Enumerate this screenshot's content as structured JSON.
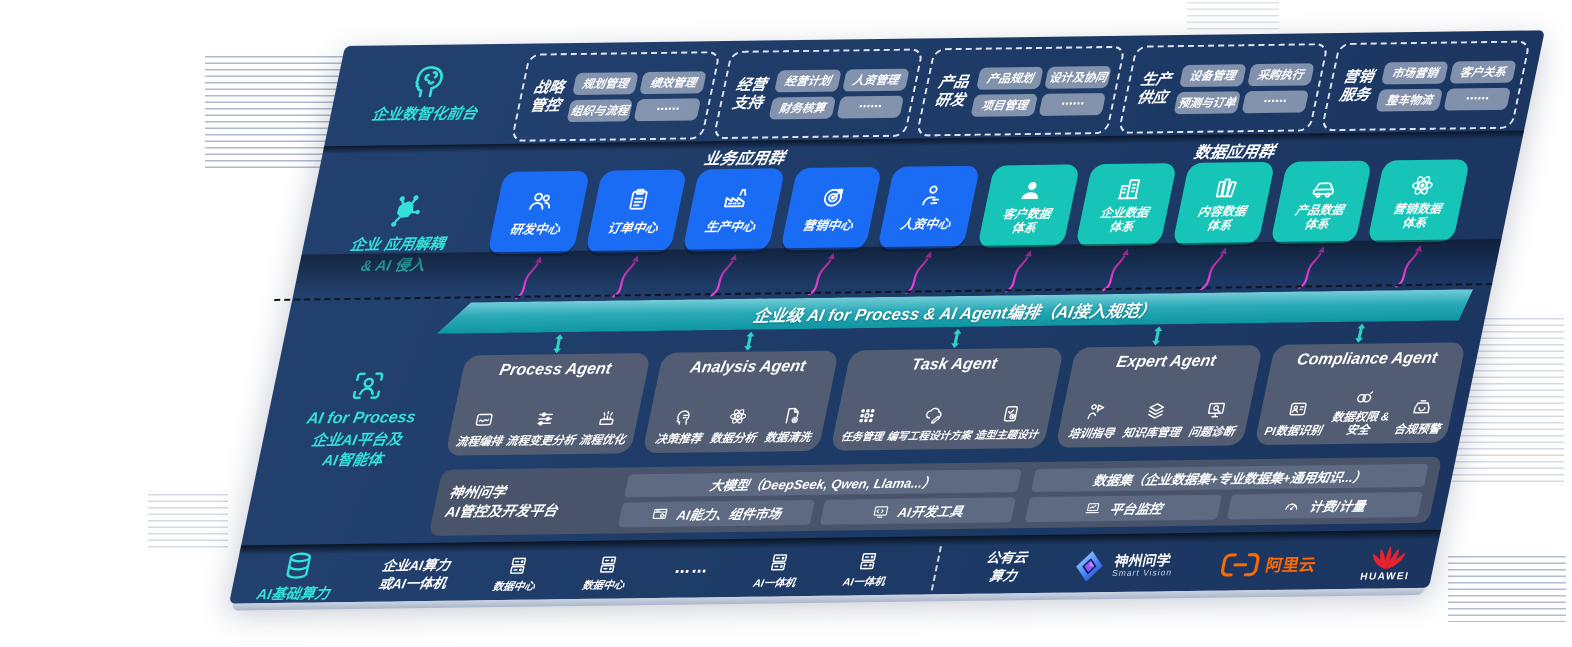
{
  "colors": {
    "panel_navy": "#1d3a66",
    "blue_tile": "#1b6cf4",
    "teal_tile": "#17c5b8",
    "banner_teal": "#1aa9b4",
    "magenta_arrow": "#ee3fd8",
    "teal_accent_text": "#35e0d8",
    "aliyun_orange": "#ff6a00",
    "huawei_red": "#e6232e"
  },
  "front_office": {
    "icon": "head-brain-icon",
    "label": "企业数智化前台",
    "groups": [
      {
        "name": "战略管控",
        "chips": [
          "规划管理",
          "绩效管理",
          "组织与流程",
          "⋯⋯"
        ]
      },
      {
        "name": "经营支持",
        "chips": [
          "经营计划",
          "人资管理",
          "财务核算",
          "⋯⋯"
        ]
      },
      {
        "name": "产品研发",
        "chips": [
          "产品规划",
          "设计及协同",
          "项目管理",
          "⋯⋯"
        ]
      },
      {
        "name": "生产供应",
        "chips": [
          "设备管理",
          "采购执行",
          "预测与订单",
          "⋯⋯"
        ]
      },
      {
        "name": "营销服务",
        "chips": [
          "市场营销",
          "客户关系",
          "整车物流",
          "⋯⋯"
        ]
      }
    ]
  },
  "apps": {
    "icon": "molecule-icon",
    "label_line1": "企业 应用解耦",
    "label_line2": "& AI 侵入",
    "business": {
      "title": "业务应用群",
      "tiles": [
        {
          "icon": "team-icon",
          "label": "研发中心"
        },
        {
          "icon": "clipboard-icon",
          "label": "订单中心"
        },
        {
          "icon": "factory-icon",
          "label": "生产中心"
        },
        {
          "icon": "target-icon",
          "label": "营销中心"
        },
        {
          "icon": "hr-icon",
          "label": "人资中心"
        }
      ]
    },
    "data": {
      "title": "数据应用群",
      "tiles": [
        {
          "icon": "user-icon",
          "label": "客户数据体系"
        },
        {
          "icon": "building-icon",
          "label": "企业数据体系"
        },
        {
          "icon": "books-icon",
          "label": "内容数据体系"
        },
        {
          "icon": "car-icon",
          "label": "产品数据体系"
        },
        {
          "icon": "atom-icon",
          "label": "营销数据体系"
        }
      ]
    }
  },
  "banner": {
    "text": "企业级 AI for Process & AI Agent编排（AI接入规范）"
  },
  "ai_platform_label": {
    "icon": "person-scan-icon",
    "line1": "AI for Process",
    "line2": "企业AI平台及",
    "line3": "AI智能体"
  },
  "agents": [
    {
      "title": "Process Agent",
      "items": [
        {
          "icon": "flow-icon",
          "label": "流程编排"
        },
        {
          "icon": "sliders-icon",
          "label": "流程变更分析"
        },
        {
          "icon": "optimize-icon",
          "label": "流程优化"
        }
      ]
    },
    {
      "title": "Analysis Agent",
      "items": [
        {
          "icon": "head-chat-icon",
          "label": "决策推荐"
        },
        {
          "icon": "atom-icon",
          "label": "数据分析"
        },
        {
          "icon": "doc-gear-icon",
          "label": "数据清洗"
        }
      ]
    },
    {
      "title": "Task Agent",
      "items": [
        {
          "icon": "grid-icon",
          "label": "任务管理"
        },
        {
          "icon": "cloud-pen-icon",
          "label": "编写工程设计方案"
        },
        {
          "icon": "card-check-icon",
          "label": "造型主题设计"
        }
      ]
    },
    {
      "title": "Expert Agent",
      "items": [
        {
          "icon": "trainer-icon",
          "label": "培训指导"
        },
        {
          "icon": "layers-icon",
          "label": "知识库管理"
        },
        {
          "icon": "diagnose-icon",
          "label": "问题诊断"
        }
      ]
    },
    {
      "title": "Compliance Agent",
      "items": [
        {
          "icon": "id-card-icon",
          "label": "PI数据识别"
        },
        {
          "icon": "lock-link-icon",
          "label": "数据权限 & 安全"
        },
        {
          "icon": "alert-box-icon",
          "label": "合规预警"
        }
      ]
    }
  ],
  "platform": {
    "name_line1": "神州问学",
    "name_line2": "AI管控及开发平台",
    "model_bar": "大模型（DeepSeek, Qwen, Llama...）",
    "left_items": [
      {
        "icon": "market-icon",
        "label": "AI能力、组件市场"
      },
      {
        "icon": "devtool-icon",
        "label": "AI开发工具"
      }
    ],
    "dataset_bar": "数据集（企业数据集+专业数据集+通用知识...）",
    "right_items": [
      {
        "icon": "monitor-icon",
        "label": "平台监控"
      },
      {
        "icon": "meter-icon",
        "label": "计费/计量"
      }
    ]
  },
  "compute": {
    "icon": "database-icon",
    "label": "AI基础算力",
    "cluster": [
      "企业AI算力",
      "或AI一体机"
    ],
    "nodes": [
      {
        "icon": "server-icon",
        "label": "数据中心"
      },
      {
        "icon": "server-icon",
        "label": "数据中心"
      },
      {
        "icon": "server-icon",
        "label": "AI一体机"
      },
      {
        "icon": "server-icon",
        "label": "AI一体机"
      }
    ],
    "dots": "⋯⋯",
    "public_cloud": [
      "公有云",
      "算力"
    ],
    "logos": {
      "shenzhou": {
        "icon": "shenzhou-logo-icon",
        "name": "神州问学",
        "sub": "Smart Vision"
      },
      "aliyun": {
        "icon": "aliyun-logo-icon",
        "name": "阿里云"
      },
      "huawei": {
        "icon": "huawei-logo-icon",
        "name": "HUAWEI"
      }
    }
  }
}
